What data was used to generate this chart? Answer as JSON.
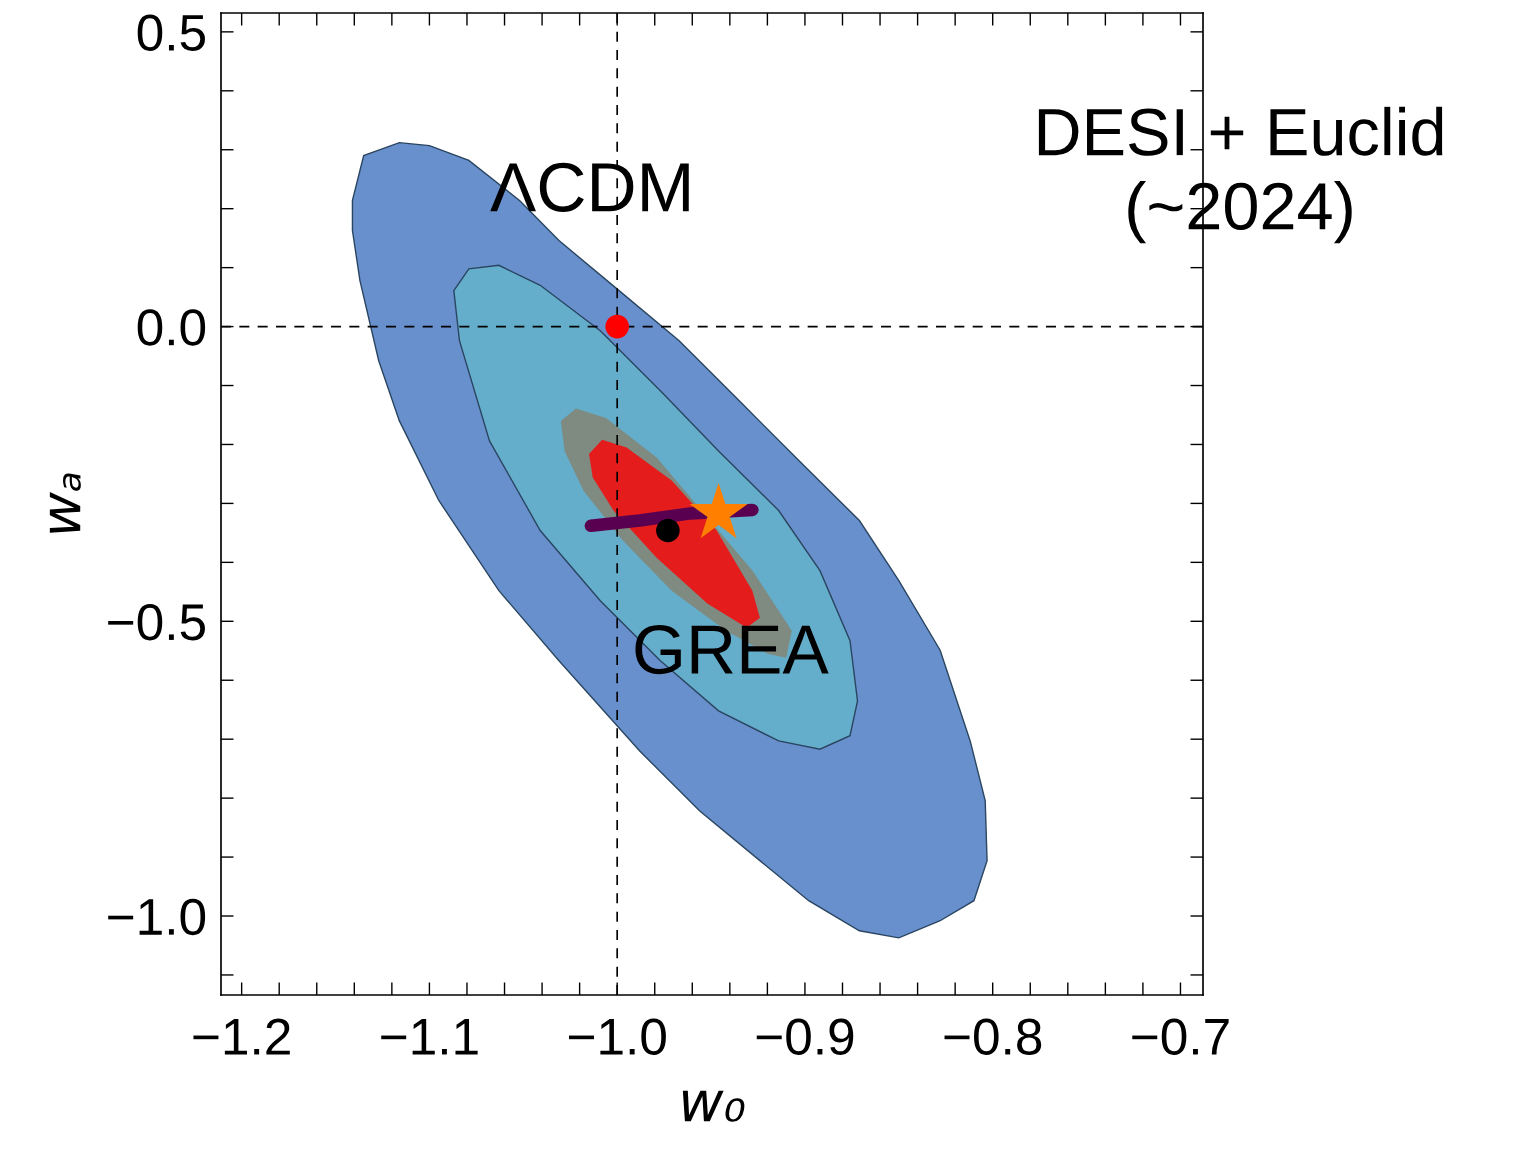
{
  "chart_data": {
    "type": "area",
    "xlabel": "w₀",
    "ylabel": "wₐ",
    "xlim": [
      -1.211,
      -0.688
    ],
    "ylim": [
      -1.134,
      0.532
    ],
    "xticks": [
      {
        "value": -1.2,
        "label": "−1.2"
      },
      {
        "value": -1.18,
        "label": null
      },
      {
        "value": -1.16,
        "label": null
      },
      {
        "value": -1.14,
        "label": null
      },
      {
        "value": -1.12,
        "label": null
      },
      {
        "value": -1.1,
        "label": "−1.1"
      },
      {
        "value": -1.08,
        "label": null
      },
      {
        "value": -1.06,
        "label": null
      },
      {
        "value": -1.04,
        "label": null
      },
      {
        "value": -1.02,
        "label": null
      },
      {
        "value": -1.0,
        "label": "−1.0"
      },
      {
        "value": -0.98,
        "label": null
      },
      {
        "value": -0.96,
        "label": null
      },
      {
        "value": -0.94,
        "label": null
      },
      {
        "value": -0.92,
        "label": null
      },
      {
        "value": -0.9,
        "label": "−0.9"
      },
      {
        "value": -0.88,
        "label": null
      },
      {
        "value": -0.86,
        "label": null
      },
      {
        "value": -0.84,
        "label": null
      },
      {
        "value": -0.82,
        "label": null
      },
      {
        "value": -0.8,
        "label": "−0.8"
      },
      {
        "value": -0.78,
        "label": null
      },
      {
        "value": -0.76,
        "label": null
      },
      {
        "value": -0.74,
        "label": null
      },
      {
        "value": -0.72,
        "label": null
      },
      {
        "value": -0.7,
        "label": "−0.7"
      }
    ],
    "yticks": [
      {
        "value": -1.1,
        "label": null
      },
      {
        "value": -1.0,
        "label": "−1.0"
      },
      {
        "value": -0.9,
        "label": null
      },
      {
        "value": -0.8,
        "label": null
      },
      {
        "value": -0.7,
        "label": null
      },
      {
        "value": -0.6,
        "label": null
      },
      {
        "value": -0.5,
        "label": "−0.5"
      },
      {
        "value": -0.4,
        "label": null
      },
      {
        "value": -0.3,
        "label": null
      },
      {
        "value": -0.2,
        "label": null
      },
      {
        "value": -0.1,
        "label": null
      },
      {
        "value": 0.0,
        "label": "0.0"
      },
      {
        "value": 0.1,
        "label": null
      },
      {
        "value": 0.2,
        "label": null
      },
      {
        "value": 0.3,
        "label": null
      },
      {
        "value": 0.4,
        "label": null
      },
      {
        "value": 0.5,
        "label": "0.5"
      }
    ],
    "ref_lines": [
      {
        "axis": "x",
        "value": -1.0,
        "color": "#000000",
        "line_style": "dashed"
      },
      {
        "axis": "y",
        "value": 0.0,
        "color": "#000000",
        "line_style": "dashed"
      }
    ],
    "series": [
      {
        "color": "#6890cc",
        "x": [
          -1.141,
          -1.135,
          -1.116,
          -1.1,
          -1.079,
          -1.052,
          -1.031,
          -0.999,
          -0.967,
          -0.935,
          -0.903,
          -0.871,
          -0.85,
          -0.828,
          -0.812,
          -0.804,
          -0.803,
          -0.81,
          -0.828,
          -0.85,
          -0.871,
          -0.898,
          -0.924,
          -0.956,
          -0.988,
          -1.031,
          -1.063,
          -1.095,
          -1.116,
          -1.127,
          -1.137,
          -1.141
        ],
        "values": [
          0.214,
          0.29,
          0.312,
          0.307,
          0.282,
          0.214,
          0.146,
          0.061,
          -0.024,
          -0.126,
          -0.228,
          -0.329,
          -0.431,
          -0.549,
          -0.703,
          -0.804,
          -0.906,
          -0.974,
          -1.008,
          -1.037,
          -1.025,
          -0.974,
          -0.906,
          -0.822,
          -0.72,
          -0.567,
          -0.448,
          -0.295,
          -0.16,
          -0.058,
          0.078,
          0.163
        ]
      },
      {
        "color": "#64aecb",
        "x": [
          -1.087,
          -1.079,
          -1.063,
          -1.041,
          -1.009,
          -0.977,
          -0.946,
          -0.914,
          -0.892,
          -0.876,
          -0.872,
          -0.876,
          -0.892,
          -0.914,
          -0.946,
          -0.977,
          -1.009,
          -1.041,
          -1.068,
          -1.084
        ],
        "values": [
          0.061,
          0.098,
          0.104,
          0.07,
          -0.007,
          -0.109,
          -0.211,
          -0.312,
          -0.414,
          -0.533,
          -0.635,
          -0.694,
          -0.717,
          -0.703,
          -0.652,
          -0.567,
          -0.465,
          -0.346,
          -0.194,
          -0.024
        ]
      },
      {
        "color": "#7f8a80",
        "x": [
          -1.03,
          -1.022,
          -1.006,
          -0.979,
          -0.928,
          -0.907,
          -0.91,
          -0.92,
          -0.942,
          -0.971,
          -0.997,
          -1.018,
          -1.028
        ],
        "values": [
          -0.16,
          -0.139,
          -0.155,
          -0.222,
          -0.414,
          -0.516,
          -0.562,
          -0.555,
          -0.516,
          -0.448,
          -0.363,
          -0.278,
          -0.211
        ]
      },
      {
        "color": "#e41c1c",
        "x": [
          -1.015,
          -1.008,
          -0.995,
          -0.971,
          -0.947,
          -0.928,
          -0.924,
          -0.931,
          -0.952,
          -0.979,
          -1.002,
          -1.013
        ],
        "values": [
          -0.216,
          -0.192,
          -0.205,
          -0.261,
          -0.346,
          -0.448,
          -0.494,
          -0.511,
          -0.47,
          -0.392,
          -0.312,
          -0.256
        ]
      },
      {
        "type": "line",
        "color": "#5a0050",
        "x": [
          -1.014,
          -0.988,
          -0.961,
          -0.928
        ],
        "values": [
          -0.338,
          -0.329,
          -0.317,
          -0.311
        ]
      },
      {
        "type": "scatter",
        "color": "#ff0000",
        "marker": "circle",
        "x": [
          -1.0
        ],
        "values": [
          0.0
        ]
      },
      {
        "type": "scatter",
        "color": "#000000",
        "marker": "circle",
        "x": [
          -0.973
        ],
        "values": [
          -0.346
        ]
      },
      {
        "type": "scatter",
        "color": "#ff8000",
        "marker": "star",
        "x": [
          -0.946
        ],
        "values": [
          -0.317
        ]
      }
    ],
    "annotations": [
      {
        "text": "ΛCDM",
        "x": -1.0,
        "y": 0.0
      },
      {
        "text": "GREA",
        "x": -0.973,
        "y": -0.346
      },
      "DESI + Euclid\n(~2024)"
    ]
  }
}
